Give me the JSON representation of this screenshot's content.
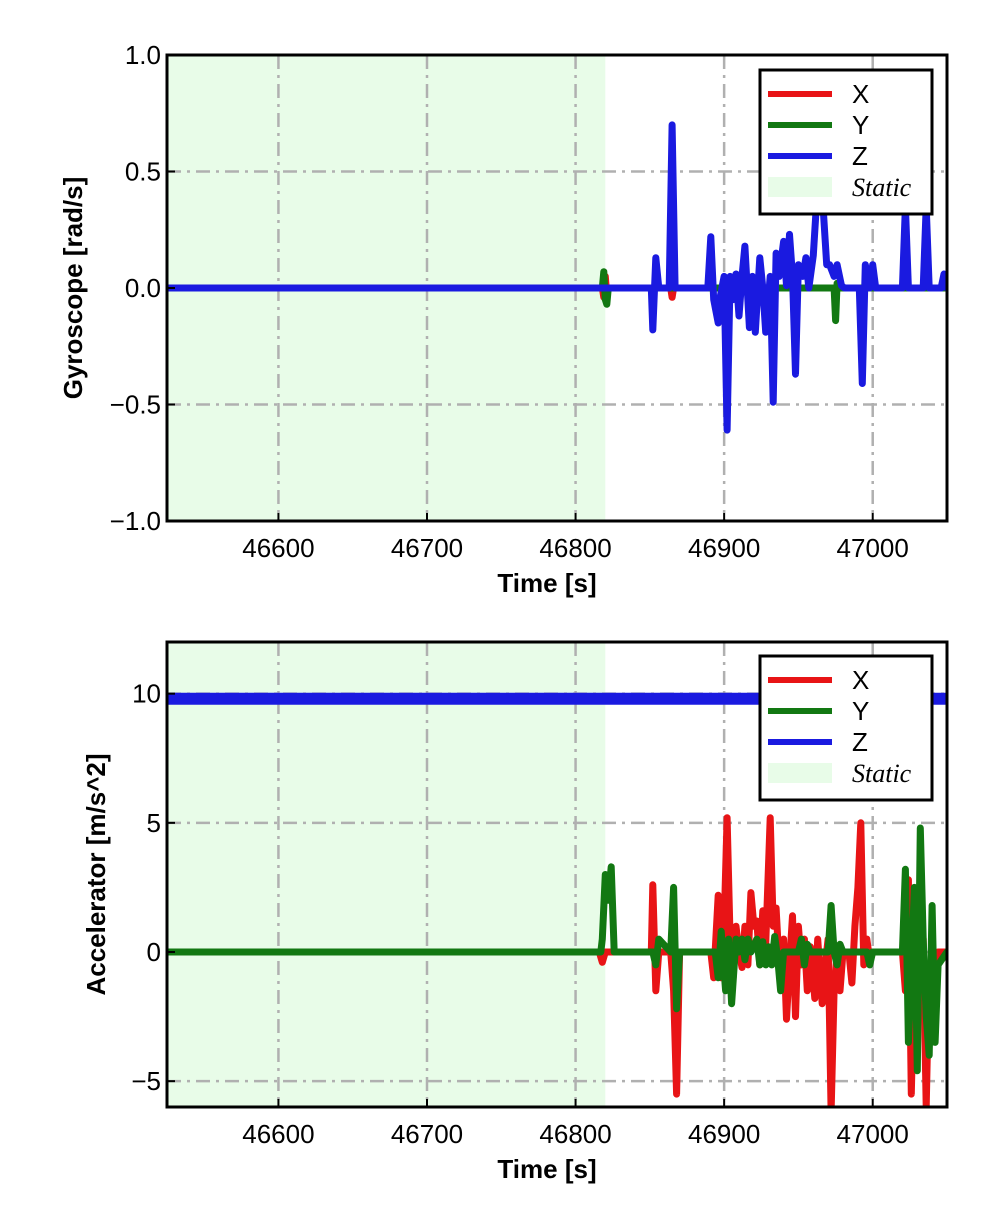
{
  "chart_data": [
    {
      "type": "line",
      "xlabel": "Time [s]",
      "ylabel": "Gyroscope [rad/s]",
      "xlim": [
        46525,
        47050
      ],
      "ylim": [
        -1.0,
        1.0
      ],
      "xticks": [
        46600,
        46700,
        46800,
        46900,
        47000
      ],
      "xtick_labels": [
        "46600",
        "46700",
        "46800",
        "46900",
        "47000"
      ],
      "yticks": [
        -1.0,
        -0.5,
        0.0,
        0.5,
        1.0
      ],
      "ytick_labels": [
        "−1.0",
        "−0.5",
        "0.0",
        "0.5",
        "1.0"
      ],
      "grid": true,
      "legend_position": "upper right",
      "static_region": [
        46525,
        46820
      ],
      "static_label": "Static",
      "static_color": "#e8fce8",
      "series": [
        {
          "name": "X",
          "color": "#e81416",
          "x": [
            46525,
            46818,
            46819,
            46820,
            46821,
            46822,
            46864,
            46865,
            46866,
            47050
          ],
          "values": [
            0,
            0,
            -0.04,
            0.05,
            -0.03,
            0,
            0,
            -0.04,
            0,
            0
          ]
        },
        {
          "name": "Y",
          "color": "#127812",
          "x": [
            46525,
            46818,
            46819,
            46820,
            46821,
            46822,
            46974,
            46975,
            46976,
            46977,
            47050
          ],
          "values": [
            0,
            0,
            0.07,
            -0.05,
            -0.07,
            0,
            0,
            -0.14,
            0.02,
            0,
            0
          ]
        },
        {
          "name": "Z",
          "color": "#1a1ae0",
          "x": [
            46525,
            46851,
            46852,
            46854,
            46856,
            46863,
            46865,
            46867,
            46889,
            46891,
            46893,
            46896,
            46897,
            46900,
            46902,
            46904,
            46906,
            46908,
            46910,
            46912,
            46914,
            46917,
            46919,
            46921,
            46924,
            46926,
            46928,
            46931,
            46933,
            46935,
            46937,
            46940,
            46942,
            46944,
            46946,
            46948,
            46950,
            46953,
            46955,
            46957,
            46960,
            46962,
            46966,
            46969,
            46971,
            46974,
            46976,
            46979,
            46981,
            46983,
            46991,
            46993,
            46995,
            46998,
            47000,
            47002,
            47020,
            47022,
            47024,
            47034,
            47036,
            47038,
            47046,
            47048,
            47050
          ],
          "values": [
            0,
            0,
            -0.18,
            0.13,
            0,
            0,
            0.7,
            0,
            0,
            0.22,
            -0.05,
            -0.15,
            -0.05,
            0.05,
            -0.61,
            0.05,
            -0.05,
            0.06,
            -0.12,
            0.05,
            0.18,
            -0.17,
            0.05,
            -0.19,
            0.13,
            0,
            -0.19,
            0.05,
            -0.49,
            0.15,
            0.05,
            0.2,
            0.01,
            0.23,
            0.05,
            -0.37,
            0.1,
            0.05,
            0.13,
            0,
            0.14,
            0.35,
            0.41,
            0.1,
            0.1,
            0.05,
            0.1,
            0.01,
            0,
            0,
            0,
            -0.41,
            0.1,
            0,
            0.1,
            0,
            0,
            0.35,
            0,
            0,
            0.35,
            0,
            0,
            0.06,
            0
          ]
        }
      ]
    },
    {
      "type": "line",
      "xlabel": "Time [s]",
      "ylabel": "Accelerator [m/s^2]",
      "xlim": [
        46525,
        47050
      ],
      "ylim": [
        -6,
        12
      ],
      "xticks": [
        46600,
        46700,
        46800,
        46900,
        47000
      ],
      "xtick_labels": [
        "46600",
        "46700",
        "46800",
        "46900",
        "47000"
      ],
      "yticks": [
        -5,
        0,
        5,
        10
      ],
      "ytick_labels": [
        "−5",
        "0",
        "5",
        "10"
      ],
      "grid": true,
      "legend_position": "upper right",
      "static_region": [
        46525,
        46820
      ],
      "static_label": "Static",
      "static_color": "#e8fce8",
      "series": [
        {
          "name": "X",
          "color": "#e81416",
          "x": [
            46525,
            46816,
            46818,
            46820,
            46851,
            46852,
            46854,
            46856,
            46864,
            46866,
            46868,
            46870,
            46891,
            46893,
            46896,
            46898,
            46900,
            46902,
            46904,
            46906,
            46908,
            46910,
            46912,
            46914,
            46916,
            46918,
            46920,
            46922,
            46924,
            46926,
            46928,
            46931,
            46933,
            46935,
            46937,
            46940,
            46942,
            46944,
            46946,
            46948,
            46950,
            46952,
            46954,
            46956,
            46958,
            46961,
            46963,
            46966,
            46968,
            46970,
            46972,
            46974,
            46976,
            46978,
            46980,
            46984,
            46986,
            46988,
            46990,
            46992,
            46994,
            46996,
            46998,
            47000,
            47002,
            47020,
            47022,
            47024,
            47026,
            47028,
            47030,
            47032,
            47034,
            47036,
            47038,
            47040,
            47042,
            47044,
            47046,
            47050
          ],
          "values": [
            0,
            0,
            -0.4,
            0,
            0,
            2.6,
            -1.5,
            0,
            0,
            -1.5,
            -5.5,
            0,
            0,
            -1.0,
            2.2,
            -1.0,
            1.0,
            5.2,
            0.5,
            -1.0,
            1.0,
            0,
            -0.6,
            1.0,
            -0.5,
            2.3,
            1.0,
            1.2,
            -0.5,
            1.6,
            0.3,
            5.2,
            1.0,
            1.7,
            -0.5,
            0.5,
            -2.6,
            -0.5,
            1.4,
            -2.5,
            1.0,
            -0.5,
            0.5,
            -1.5,
            0.2,
            -1.8,
            0.5,
            -2.0,
            -0.5,
            0.5,
            -6.2,
            -1.5,
            0,
            -1.5,
            0,
            0,
            -1.2,
            1.0,
            2.5,
            5.0,
            -0.5,
            0.5,
            -0.3,
            0,
            0,
            0,
            -1.5,
            2.8,
            -5.5,
            -0.5,
            -2.5,
            -0.5,
            0.5,
            -6.0,
            -0.5,
            -1.0,
            -0.3,
            0,
            0,
            0
          ]
        },
        {
          "name": "Y",
          "color": "#127812",
          "x": [
            46525,
            46817,
            46818,
            46820,
            46822,
            46824,
            46826,
            46852,
            46854,
            46856,
            46864,
            46866,
            46868,
            46870,
            46894,
            46896,
            46898,
            46901,
            46903,
            46905,
            46908,
            46910,
            46912,
            46914,
            46916,
            46918,
            46922,
            46924,
            46926,
            46928,
            46930,
            46932,
            46934,
            46936,
            46938,
            46940,
            46950,
            46952,
            46954,
            46956,
            46958,
            46962,
            46970,
            46972,
            46974,
            46976,
            46978,
            46980,
            46996,
            46998,
            47000,
            47018,
            47020,
            47022,
            47024,
            47026,
            47028,
            47030,
            47032,
            47034,
            47036,
            47038,
            47040,
            47042,
            47044,
            47050
          ],
          "values": [
            0,
            0,
            0.5,
            3.0,
            2.0,
            3.3,
            0,
            0,
            -0.5,
            0.5,
            0,
            2.5,
            -2.2,
            0,
            0,
            -1.0,
            0.8,
            -1.5,
            0.5,
            -2.0,
            0.5,
            0,
            0.5,
            -0.3,
            0.5,
            0,
            0.5,
            -0.5,
            0.4,
            -0.5,
            0.2,
            -0.5,
            0.6,
            -0.2,
            -1.5,
            0,
            0,
            0.5,
            -0.5,
            0.3,
            0,
            0,
            0,
            1.8,
            0,
            -0.5,
            0.3,
            0,
            0,
            -0.5,
            0,
            0,
            0,
            3.2,
            -3.5,
            -1.0,
            2.5,
            -4.6,
            4.8,
            0.5,
            -2.5,
            -4.0,
            1.8,
            -3.5,
            -0.5,
            0
          ]
        },
        {
          "name": "Z",
          "color": "#1a1ae0",
          "x": [
            46525,
            47050
          ],
          "values": [
            9.8,
            9.8
          ]
        }
      ]
    }
  ]
}
